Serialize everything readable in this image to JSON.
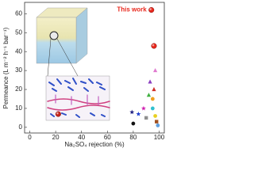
{
  "chart_data": {
    "type": "scatter",
    "x_label": "Na₂SO₄ rejection (%)",
    "y_label": "Permeance (L m⁻² h⁻¹ bar⁻¹)",
    "annotation": "This work",
    "annotation_color": "#e8271c",
    "x": [
      94,
      96,
      22,
      97,
      93,
      96,
      92,
      95,
      88,
      84,
      79,
      95,
      97,
      90,
      98,
      80,
      99
    ],
    "y": [
      62,
      43,
      7,
      30,
      24,
      20,
      17,
      15,
      10,
      7,
      8,
      10,
      6,
      5,
      3,
      2,
      1
    ],
    "colors": [
      "#e8271c",
      "#e8271c",
      "#c4221a",
      "#e07ad0",
      "#8a3ec0",
      "#d0302a",
      "#40b040",
      "#f0a020",
      "#d020b0",
      "#2040d0",
      "#202080",
      "#30c0d0",
      "#e8d020",
      "#909090",
      "#a05020",
      "#111111",
      "#60a0e0"
    ],
    "shapes": [
      "sphere",
      "sphere",
      "sphere",
      "triangle",
      "triangle",
      "triangle",
      "triangle",
      "circle",
      "star",
      "star",
      "star",
      "circle",
      "circle",
      "square",
      "square",
      "circle",
      "circle"
    ],
    "xlim": [
      -4,
      104
    ],
    "ylim": [
      -3,
      66
    ],
    "xticks": [
      0,
      20,
      40,
      60,
      80,
      100
    ],
    "yticks": [
      0,
      10,
      20,
      30,
      40,
      50,
      60
    ]
  }
}
